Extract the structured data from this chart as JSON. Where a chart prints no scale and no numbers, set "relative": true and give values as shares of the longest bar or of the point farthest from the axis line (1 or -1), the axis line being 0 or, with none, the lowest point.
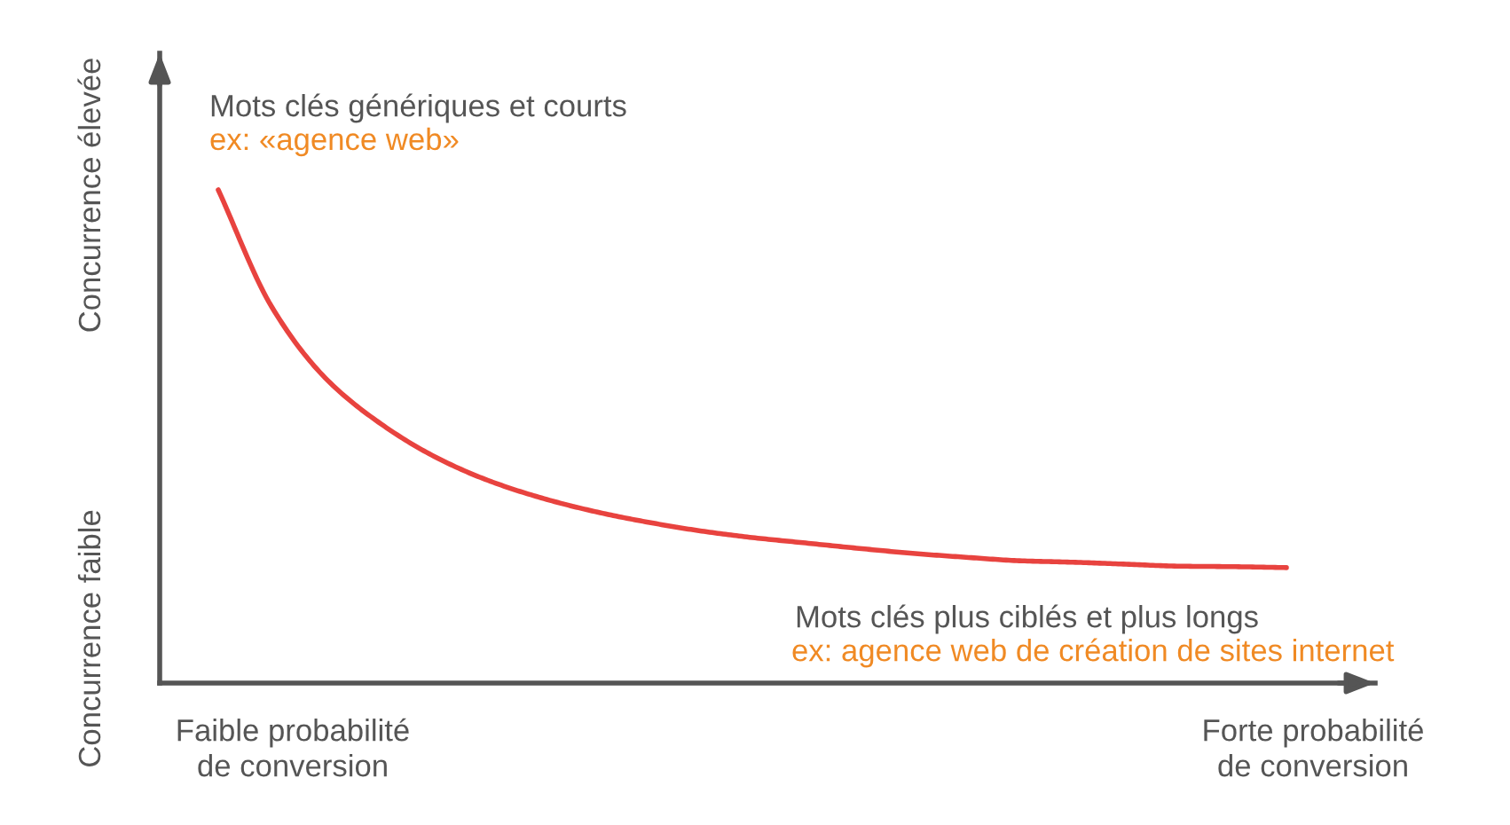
{
  "chart_data": {
    "type": "line",
    "relative": true,
    "color": "#e8433f",
    "categories": [
      null,
      null,
      null,
      null,
      null,
      null,
      null,
      null,
      null,
      null,
      null,
      null,
      null,
      null,
      null,
      null,
      null,
      null,
      null,
      null,
      null
    ],
    "values": [
      1,
      0.763,
      0.619,
      0.529,
      0.462,
      0.413,
      0.377,
      0.349,
      0.327,
      0.309,
      0.295,
      0.284,
      0.273,
      0.263,
      0.255,
      0.248,
      0.245,
      0.241,
      0.237,
      0.236,
      0.234
    ],
    "annotations": [
      "Mots clés génériques et courts",
      "ex: «agence web»",
      "Mots clés plus ciblés et plus longs",
      "ex: agence web de création de sites internet",
      "Faible probabilité\nde conversion",
      "Forte probabilité\nde conversion",
      "Concurrence élevée",
      "Concurrence faible"
    ]
  }
}
